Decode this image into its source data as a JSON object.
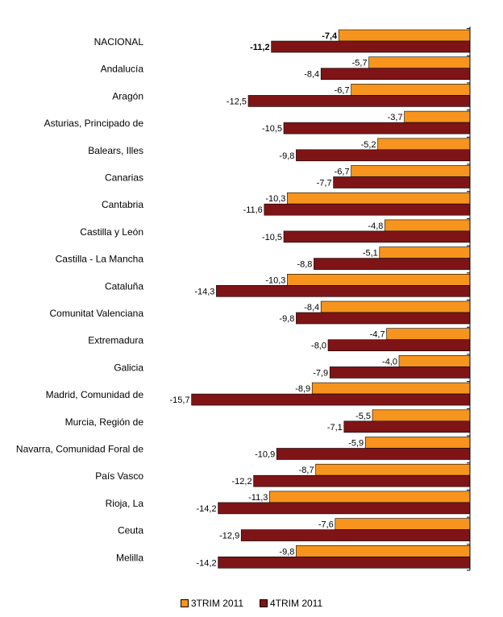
{
  "chart_data": {
    "type": "bar",
    "orientation": "horizontal",
    "categories": [
      "NACIONAL",
      "Andalucía",
      "Aragón",
      "Asturias, Principado de",
      "Balears, Illes",
      "Canarias",
      "Cantabria",
      "Castilla y León",
      "Castilla - La Mancha",
      "Cataluña",
      "Comunitat Valenciana",
      "Extremadura",
      "Galicia",
      "Madrid, Comunidad de",
      "Murcia, Región de",
      "Navarra, Comunidad Foral de",
      "País Vasco",
      "Rioja, La",
      "Ceuta",
      "Melilla"
    ],
    "series": [
      {
        "name": "3TRIM 2011",
        "color": "#f7941d",
        "values": [
          -7.4,
          -5.7,
          -6.7,
          -3.7,
          -5.2,
          -6.7,
          -10.3,
          -4.8,
          -5.1,
          -10.3,
          -8.4,
          -4.7,
          -4.0,
          -8.9,
          -5.5,
          -5.9,
          -8.7,
          -11.3,
          -7.6,
          -9.8
        ],
        "labels": [
          "-7,4",
          "-5,7",
          "-6,7",
          "-3,7",
          "-5,2",
          "-6,7",
          "-10,3",
          "-4,8",
          "-5,1",
          "-10,3",
          "-8,4",
          "-4,7",
          "-4,0",
          "-8,9",
          "-5,5",
          "-5,9",
          "-8,7",
          "-11,3",
          "-7,6",
          "-9,8"
        ]
      },
      {
        "name": "4TRIM 2011",
        "color": "#7f1416",
        "values": [
          -11.2,
          -8.4,
          -12.5,
          -10.5,
          -9.8,
          -7.7,
          -11.6,
          -10.5,
          -8.8,
          -14.3,
          -9.8,
          -8.0,
          -7.9,
          -15.7,
          -7.1,
          -10.9,
          -12.2,
          -14.2,
          -12.9,
          -14.2
        ],
        "labels": [
          "-11,2",
          "-8,4",
          "-12,5",
          "-10,5",
          "-9,8",
          "-7,7",
          "-11,6",
          "-10,5",
          "-8,8",
          "-14,3",
          "-9,8",
          "-8,0",
          "-7,9",
          "-15,7",
          "-7,1",
          "-10,9",
          "-12,2",
          "-14,2",
          "-12,9",
          "-14,2"
        ]
      }
    ],
    "xlim": [
      -17,
      0
    ],
    "grid": false,
    "legend_position": "bottom"
  }
}
